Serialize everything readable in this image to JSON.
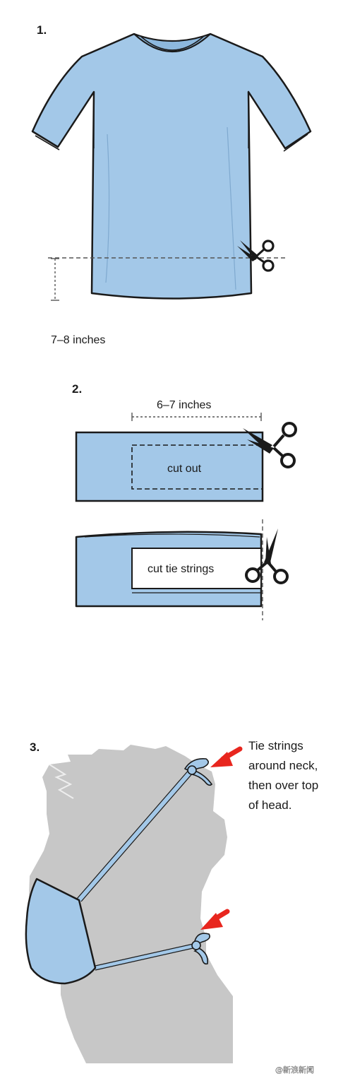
{
  "colors": {
    "fabric": "#a3c8e8",
    "outline": "#1a1a1a",
    "head": "#c7c7c7",
    "arrow": "#e8261e"
  },
  "step1": {
    "number": "1.",
    "measure": "7–8 inches"
  },
  "step2": {
    "number": "2.",
    "measure": "6–7 inches",
    "cut_out": "cut out",
    "cut_tie": "cut tie strings"
  },
  "step3": {
    "number": "3.",
    "note_lines": [
      "Tie strings",
      "around neck,",
      "then over top",
      "of head."
    ]
  },
  "watermark": "@新浪新闻"
}
